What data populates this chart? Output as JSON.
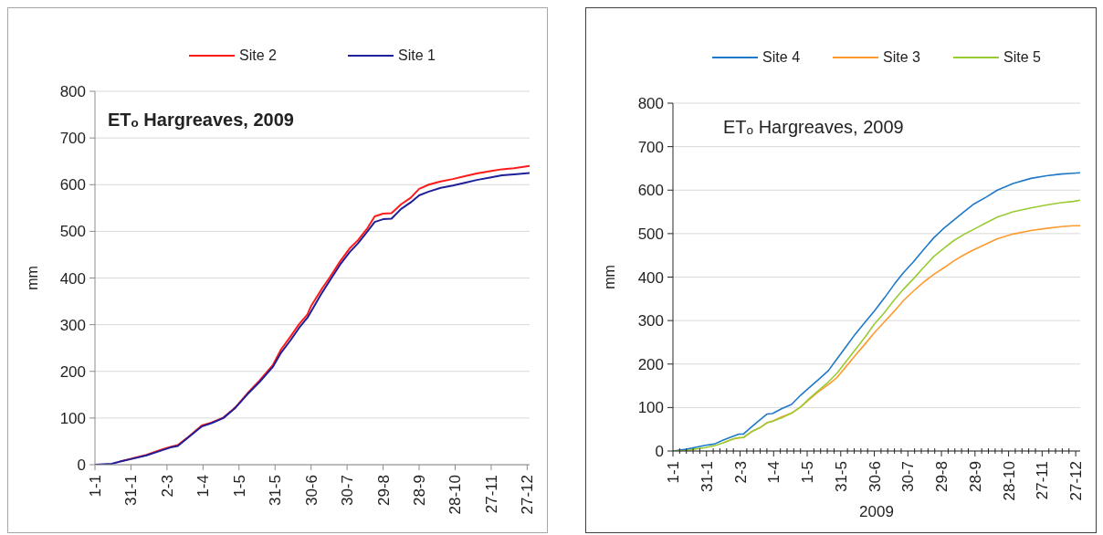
{
  "chart_data": [
    {
      "type": "line",
      "title": "ETₒ Hargreaves, 2009",
      "ylabel": "mm",
      "x": [
        "--01-01",
        "--01-15",
        "--01-22",
        "--01-31",
        "--02-13",
        "--02-26",
        "--03-05",
        "--03-11",
        "--03-21",
        "--03-31",
        "--04-08",
        "--04-18",
        "--04-28",
        "--05-08",
        "--05-18",
        "--05-29",
        "--06-05",
        "--06-13",
        "--06-20",
        "--06-27",
        "--06-30",
        "--07-09",
        "--07-16",
        "--07-24",
        "--08-01",
        "--08-08",
        "--08-16",
        "--08-22",
        "--08-29",
        "--09-05",
        "--09-13",
        "--09-21",
        "--09-28",
        "--10-06",
        "--10-16",
        "--10-26",
        "--11-05",
        "--11-15",
        "--11-26",
        "--12-06",
        "--12-16",
        "--12-29"
      ],
      "series": [
        {
          "name": "Site 2",
          "color": "#ff1a1a",
          "values": [
            null,
            null,
            7,
            13,
            21,
            33,
            38,
            42,
            62,
            84,
            90,
            101,
            123,
            153,
            180,
            213,
            247,
            275,
            301,
            322,
            340,
            377,
            403,
            435,
            463,
            481,
            507,
            532,
            538,
            539,
            558,
            572,
            591,
            600,
            607,
            612,
            618,
            624,
            629,
            633,
            635,
            640
          ]
        },
        {
          "name": "Site 1",
          "color": "#1f1f9a",
          "values": [
            0,
            2,
            7,
            12,
            20,
            31,
            37,
            40,
            61,
            82,
            89,
            100,
            122,
            151,
            177,
            209,
            240,
            267,
            293,
            315,
            328,
            368,
            396,
            428,
            455,
            474,
            500,
            520,
            526,
            527,
            548,
            562,
            577,
            585,
            593,
            598,
            604,
            610,
            615,
            620,
            622,
            625
          ]
        }
      ],
      "xlim": [
        "--01-01",
        "--12-29"
      ],
      "xticks": [
        {
          "value": "--01-01",
          "label": "1-1"
        },
        {
          "value": "--01-31",
          "label": "31-1"
        },
        {
          "value": "--03-02",
          "label": "2-3"
        },
        {
          "value": "--04-01",
          "label": "1-4"
        },
        {
          "value": "--05-01",
          "label": "1-5"
        },
        {
          "value": "--05-31",
          "label": "31-5"
        },
        {
          "value": "--06-30",
          "label": "30-6"
        },
        {
          "value": "--07-30",
          "label": "30-7"
        },
        {
          "value": "--08-29",
          "label": "29-8"
        },
        {
          "value": "--09-28",
          "label": "28-9"
        },
        {
          "value": "--10-28",
          "label": "28-10"
        },
        {
          "value": "--11-27",
          "label": "27-11"
        },
        {
          "value": "--12-27",
          "label": "27-12"
        }
      ],
      "ylim": [
        0,
        800
      ],
      "yticks": [
        0,
        100,
        200,
        300,
        400,
        500,
        600,
        700,
        800
      ],
      "grid": "y",
      "legend": "top"
    },
    {
      "type": "line",
      "title": "ETₒ Hargreaves, 2009",
      "ylabel": "mm",
      "xlabel": "2009",
      "x": [
        "--01-01",
        "--01-13",
        "--01-22",
        "--01-30",
        "--02-07",
        "--02-15",
        "--02-24",
        "--03-01",
        "--03-05",
        "--03-12",
        "--03-20",
        "--03-26",
        "--03-31",
        "--04-08",
        "--04-17",
        "--04-25",
        "--05-03",
        "--05-11",
        "--05-20",
        "--05-28",
        "--06-05",
        "--06-13",
        "--06-22",
        "--06-30",
        "--07-09",
        "--07-18",
        "--07-26",
        "--08-04",
        "--08-13",
        "--08-22",
        "--08-31",
        "--09-09",
        "--09-18",
        "--09-27",
        "--10-08",
        "--10-18",
        "--11-01",
        "--11-17",
        "--12-01",
        "--12-14",
        "--12-25",
        "--12-31"
      ],
      "series": [
        {
          "name": "Site 4",
          "color": "#1f78c8",
          "values": [
            0,
            4,
            9,
            13,
            16,
            25,
            34,
            39,
            39,
            55,
            72,
            85,
            86,
            97,
            107,
            128,
            146,
            164,
            185,
            213,
            241,
            269,
            297,
            322,
            352,
            384,
            410,
            435,
            463,
            490,
            512,
            531,
            550,
            568,
            584,
            600,
            615,
            627,
            633,
            637,
            639,
            640
          ]
        },
        {
          "name": "Site 3",
          "color": "#ff9a2e",
          "values": [
            null,
            null,
            null,
            null,
            null,
            19,
            28,
            30,
            31,
            44,
            54,
            65,
            69,
            78,
            87,
            101,
            119,
            136,
            153,
            170,
            195,
            220,
            247,
            272,
            297,
            322,
            346,
            368,
            388,
            406,
            421,
            437,
            451,
            463,
            476,
            488,
            499,
            507,
            512,
            516,
            518,
            518
          ]
        },
        {
          "name": "Site 5",
          "color": "#99cc33",
          "values": [
            0,
            1,
            5,
            8,
            12,
            19,
            28,
            31,
            31,
            44,
            54,
            65,
            68,
            76,
            87,
            101,
            121,
            139,
            159,
            180,
            207,
            233,
            263,
            292,
            318,
            348,
            372,
            396,
            422,
            447,
            466,
            484,
            498,
            510,
            525,
            538,
            550,
            559,
            566,
            571,
            574,
            577
          ]
        }
      ],
      "xlim": [
        "--01-01",
        "--12-31"
      ],
      "xticks": [
        {
          "value": "--01-01",
          "label": "1-1"
        },
        {
          "value": "--01-07",
          "label": null
        },
        {
          "value": "--01-13",
          "label": null
        },
        {
          "value": "--01-19",
          "label": null
        },
        {
          "value": "--01-25",
          "label": null
        },
        {
          "value": "--01-31",
          "label": "31-1"
        },
        {
          "value": "--02-06",
          "label": null
        },
        {
          "value": "--02-12",
          "label": null
        },
        {
          "value": "--02-18",
          "label": null
        },
        {
          "value": "--02-24",
          "label": null
        },
        {
          "value": "--03-02",
          "label": "2-3"
        },
        {
          "value": "--03-08",
          "label": null
        },
        {
          "value": "--03-14",
          "label": null
        },
        {
          "value": "--03-20",
          "label": null
        },
        {
          "value": "--03-26",
          "label": null
        },
        {
          "value": "--04-01",
          "label": "1-4"
        },
        {
          "value": "--04-07",
          "label": null
        },
        {
          "value": "--04-13",
          "label": null
        },
        {
          "value": "--04-19",
          "label": null
        },
        {
          "value": "--04-25",
          "label": null
        },
        {
          "value": "--05-01",
          "label": "1-5"
        },
        {
          "value": "--05-07",
          "label": null
        },
        {
          "value": "--05-13",
          "label": null
        },
        {
          "value": "--05-19",
          "label": null
        },
        {
          "value": "--05-25",
          "label": null
        },
        {
          "value": "--05-31",
          "label": "31-5"
        },
        {
          "value": "--06-06",
          "label": null
        },
        {
          "value": "--06-12",
          "label": null
        },
        {
          "value": "--06-18",
          "label": null
        },
        {
          "value": "--06-24",
          "label": null
        },
        {
          "value": "--06-30",
          "label": "30-6"
        },
        {
          "value": "--07-06",
          "label": null
        },
        {
          "value": "--07-12",
          "label": null
        },
        {
          "value": "--07-18",
          "label": null
        },
        {
          "value": "--07-24",
          "label": null
        },
        {
          "value": "--07-30",
          "label": "30-7"
        },
        {
          "value": "--08-05",
          "label": null
        },
        {
          "value": "--08-11",
          "label": null
        },
        {
          "value": "--08-17",
          "label": null
        },
        {
          "value": "--08-23",
          "label": null
        },
        {
          "value": "--08-29",
          "label": "29-8"
        },
        {
          "value": "--09-04",
          "label": null
        },
        {
          "value": "--09-10",
          "label": null
        },
        {
          "value": "--09-16",
          "label": null
        },
        {
          "value": "--09-22",
          "label": null
        },
        {
          "value": "--09-28",
          "label": "28-9"
        },
        {
          "value": "--10-04",
          "label": null
        },
        {
          "value": "--10-10",
          "label": null
        },
        {
          "value": "--10-16",
          "label": null
        },
        {
          "value": "--10-22",
          "label": null
        },
        {
          "value": "--10-28",
          "label": "28-10"
        },
        {
          "value": "--11-03",
          "label": null
        },
        {
          "value": "--11-09",
          "label": null
        },
        {
          "value": "--11-15",
          "label": null
        },
        {
          "value": "--11-21",
          "label": null
        },
        {
          "value": "--11-27",
          "label": "27-11"
        },
        {
          "value": "--12-03",
          "label": null
        },
        {
          "value": "--12-09",
          "label": null
        },
        {
          "value": "--12-15",
          "label": null
        },
        {
          "value": "--12-21",
          "label": null
        },
        {
          "value": "--12-27",
          "label": "27-12"
        }
      ],
      "ylim": [
        0,
        800
      ],
      "yticks": [
        0,
        100,
        200,
        300,
        400,
        500,
        600,
        700,
        800
      ],
      "grid": "y",
      "legend": "top"
    }
  ]
}
